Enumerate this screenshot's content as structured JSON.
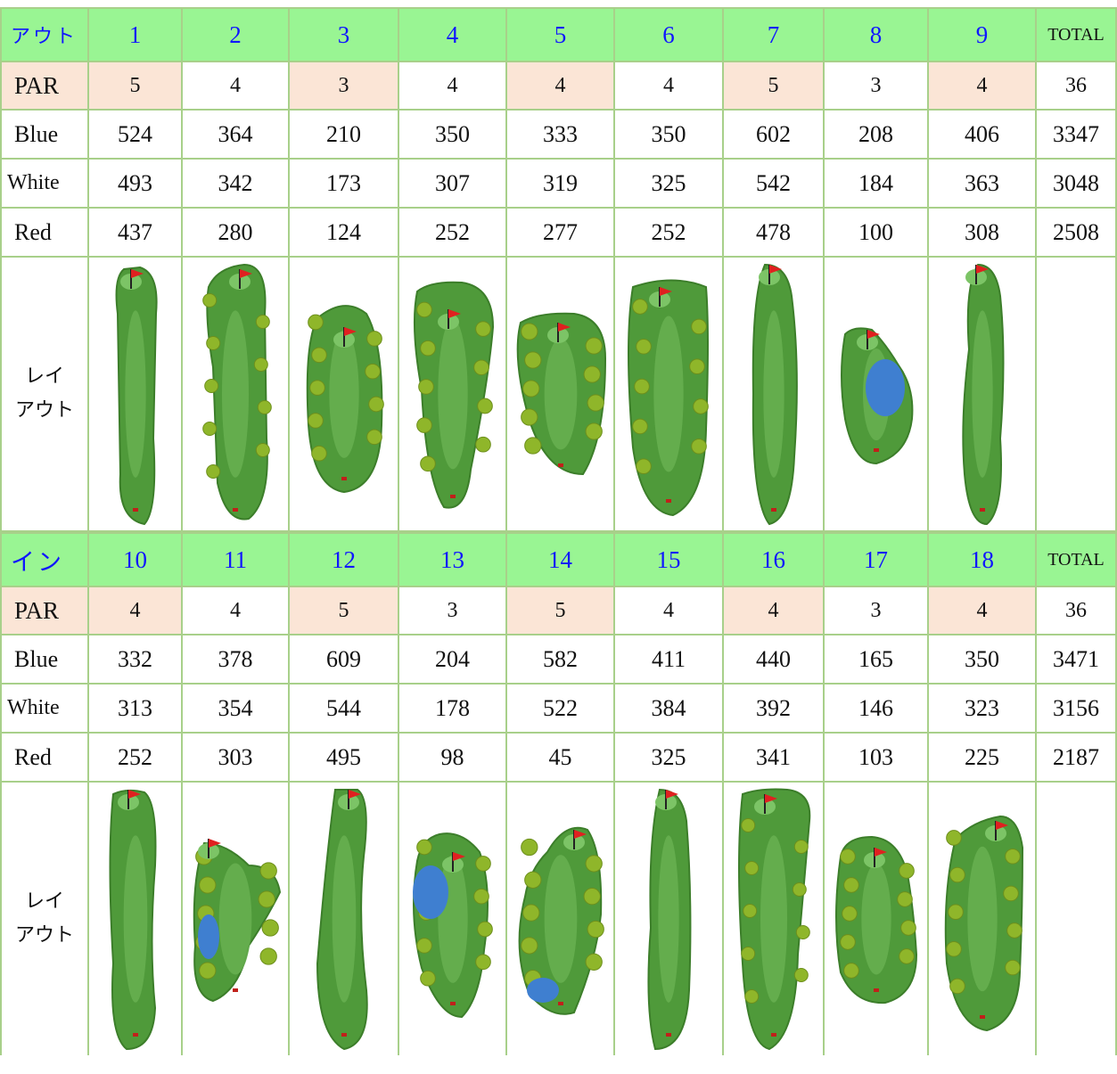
{
  "out": {
    "label": "アウト",
    "holes": [
      "1",
      "2",
      "3",
      "4",
      "5",
      "6",
      "7",
      "8",
      "9"
    ],
    "total_label": "TOTAL",
    "par": {
      "label": "PAR",
      "values": [
        "5",
        "4",
        "3",
        "4",
        "4",
        "4",
        "5",
        "3",
        "4"
      ],
      "total": "36"
    },
    "blue": {
      "label": "Blue",
      "values": [
        "524",
        "364",
        "210",
        "350",
        "333",
        "350",
        "602",
        "208",
        "406"
      ],
      "total": "3347"
    },
    "white": {
      "label": "White",
      "values": [
        "493",
        "342",
        "173",
        "307",
        "319",
        "325",
        "542",
        "184",
        "363"
      ],
      "total": "3048"
    },
    "red": {
      "label": "Red",
      "values": [
        "437",
        "280",
        "124",
        "252",
        "277",
        "252",
        "478",
        "100",
        "308"
      ],
      "total": "2508"
    },
    "layout_label_1": "レイ",
    "layout_label_2": "アウト"
  },
  "in": {
    "label": "イン",
    "holes": [
      "10",
      "11",
      "12",
      "13",
      "14",
      "15",
      "16",
      "17",
      "18"
    ],
    "total_label": "TOTAL",
    "par": {
      "label": "PAR",
      "values": [
        "4",
        "4",
        "5",
        "3",
        "5",
        "4",
        "4",
        "3",
        "4"
      ],
      "total": "36"
    },
    "blue": {
      "label": "Blue",
      "values": [
        "332",
        "378",
        "609",
        "204",
        "582",
        "411",
        "440",
        "165",
        "350"
      ],
      "total": "3471"
    },
    "white": {
      "label": "White",
      "values": [
        "313",
        "354",
        "544",
        "178",
        "522",
        "384",
        "392",
        "146",
        "323"
      ],
      "total": "3156"
    },
    "red": {
      "label": "Red",
      "values": [
        "252",
        "303",
        "495",
        "98",
        "45",
        "325",
        "341",
        "103",
        "225"
      ],
      "total": "2187"
    },
    "layout_label_1": "レイ",
    "layout_label_2": "アウト"
  },
  "colors": {
    "header_bg": "#99f593",
    "hole_number": "#1016ff",
    "par_shade": "#fbe5d6",
    "border": "#a8d08a",
    "fairway": "#4f9a3a",
    "trees": "#8fb62a",
    "water": "#3f7fd0",
    "flag": "#e02020"
  },
  "icons": {
    "hole_map": "golf-hole-layout-icon",
    "flag": "flag-icon"
  }
}
